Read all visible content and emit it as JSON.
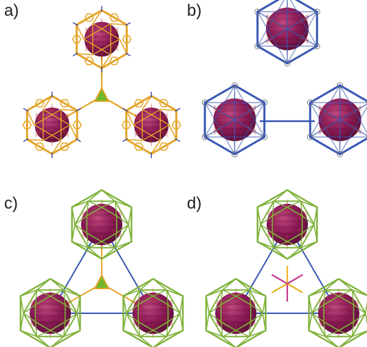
{
  "panels": [
    {
      "id": "a",
      "label": "a)"
    },
    {
      "id": "b",
      "label": "b)"
    },
    {
      "id": "c",
      "label": "c)"
    },
    {
      "id": "d",
      "label": "d)"
    }
  ],
  "colors": {
    "sphere": "#8b1a55",
    "sphere_highlight": "#c2487f",
    "cage_orange": "#e4a52a",
    "cage_blue": "#3757b3",
    "cage_green": "#7fb23a",
    "inner_red": "#b53030",
    "axis_blue": "#2b3aa8",
    "triangle_green": "#6fb82c",
    "star_magenta": "#c23b8c",
    "star_yellow": "#e8b52a"
  }
}
